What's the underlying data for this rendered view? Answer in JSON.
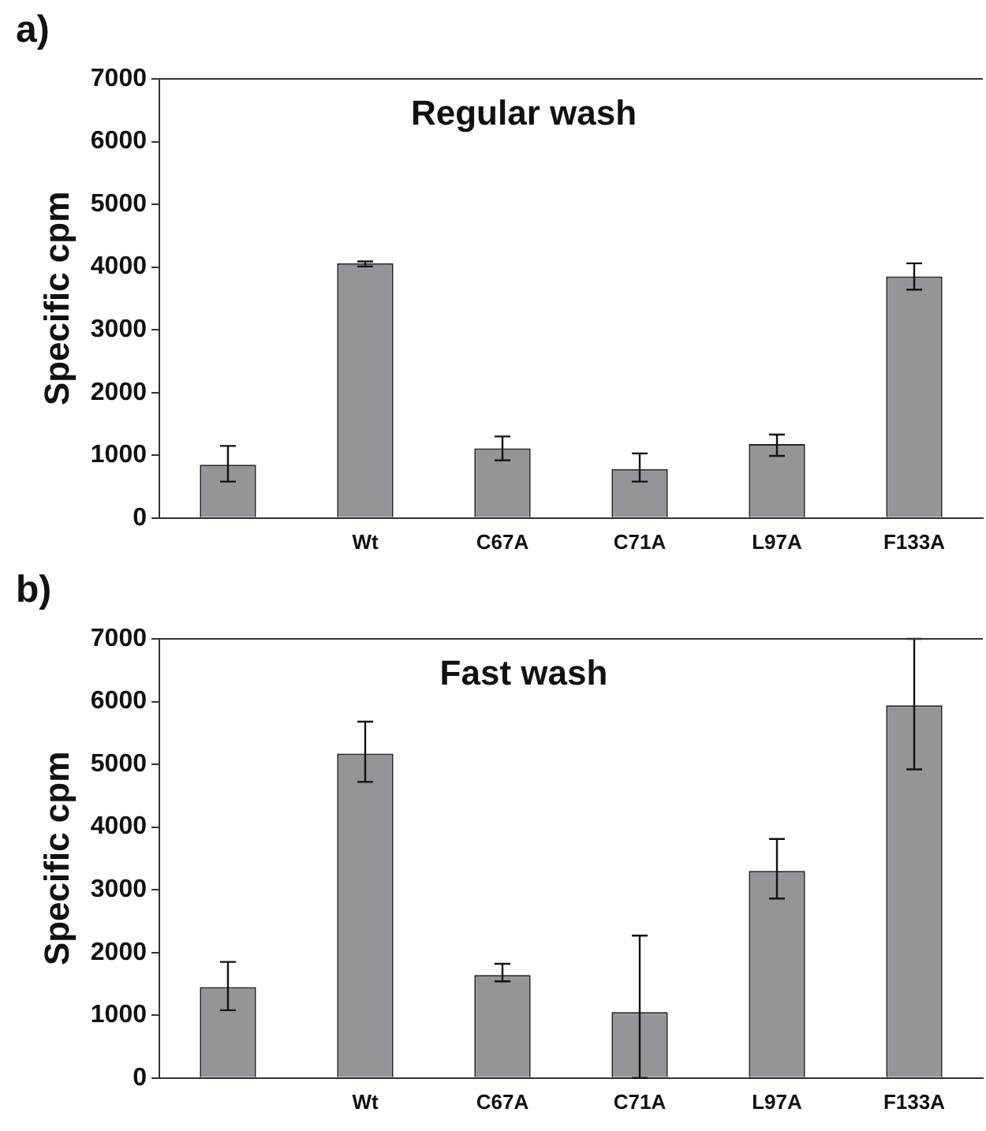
{
  "chart_data": [
    {
      "type": "bar",
      "title": "Regular wash",
      "ylabel": "Specific cpm",
      "annotations": [
        "a)"
      ],
      "categories": [
        null,
        "Wt",
        "C67A",
        "C71A",
        "L97A",
        "F133A"
      ],
      "series": [
        {
          "color": "#939598",
          "values": [
            850,
            4060,
            1110,
            780,
            1180,
            3850
          ],
          "errors": [
            [
              580,
              1150
            ],
            [
              4010,
              4090
            ],
            [
              920,
              1300
            ],
            [
              580,
              1030
            ],
            [
              990,
              1330
            ],
            [
              3640,
              4060
            ]
          ]
        }
      ],
      "ylim": [
        0,
        7000
      ],
      "yticks": [
        0,
        1000,
        2000,
        3000,
        4000,
        5000,
        6000,
        7000
      ],
      "grid": false,
      "legend": false
    },
    {
      "type": "bar",
      "title": "Fast wash",
      "ylabel": "Specific cpm",
      "annotations": [
        "b)"
      ],
      "categories": [
        null,
        "Wt",
        "C67A",
        "C71A",
        "L97A",
        "F133A"
      ],
      "series": [
        {
          "color": "#939598",
          "values": [
            1450,
            5170,
            1640,
            1050,
            3300,
            5940
          ],
          "errors": [
            [
              1080,
              1850
            ],
            [
              4720,
              5680
            ],
            [
              1540,
              1820
            ],
            [
              0,
              2270
            ],
            [
              2860,
              3810
            ],
            [
              4920,
              7000
            ]
          ]
        }
      ],
      "ylim": [
        0,
        7000
      ],
      "yticks": [
        0,
        1000,
        2000,
        3000,
        4000,
        5000,
        6000,
        7000
      ],
      "grid": false,
      "legend": false
    }
  ]
}
